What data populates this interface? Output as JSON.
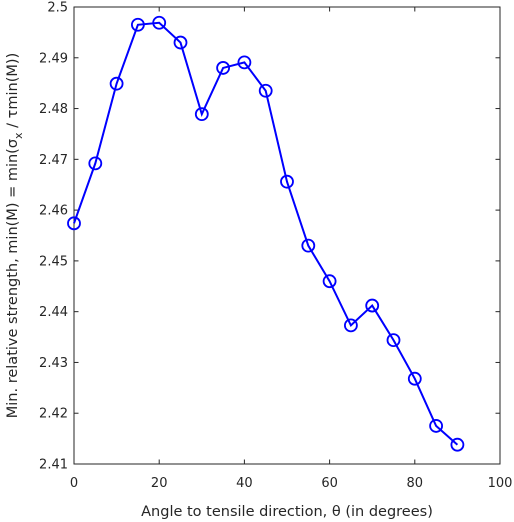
{
  "chart_data": {
    "type": "line",
    "title": "",
    "xlabel": "Angle to tensile direction, θ (in degrees)",
    "ylabel": "Min. relative strength, min(M) = min(σx / τmin(M))",
    "ylabel_parts": {
      "pre": "Min. relative strength, min(M) = min(σ",
      "sub": "x",
      "post": " / τmin(M))"
    },
    "xlim": [
      0,
      100
    ],
    "ylim": [
      2.41,
      2.5
    ],
    "xticks": [
      "0",
      "20",
      "40",
      "60",
      "80",
      "100"
    ],
    "yticks": [
      "2.41",
      "2.42",
      "2.43",
      "2.44",
      "2.45",
      "2.46",
      "2.47",
      "2.48",
      "2.49",
      "2.5"
    ],
    "grid": false,
    "line_color": "#0000ff",
    "marker": "circle",
    "series": [
      {
        "x": [
          0,
          5,
          10,
          15,
          20,
          25,
          30,
          35,
          40,
          45,
          50,
          55,
          60,
          65,
          70,
          75,
          80,
          85,
          90
        ],
        "values": [
          2.4574,
          2.4692,
          2.4849,
          2.4965,
          2.4969,
          2.493,
          2.4789,
          2.488,
          2.4891,
          2.4835,
          2.4656,
          2.453,
          2.446,
          2.4373,
          2.4412,
          2.4344,
          2.4268,
          2.4175,
          2.4138
        ]
      }
    ]
  }
}
